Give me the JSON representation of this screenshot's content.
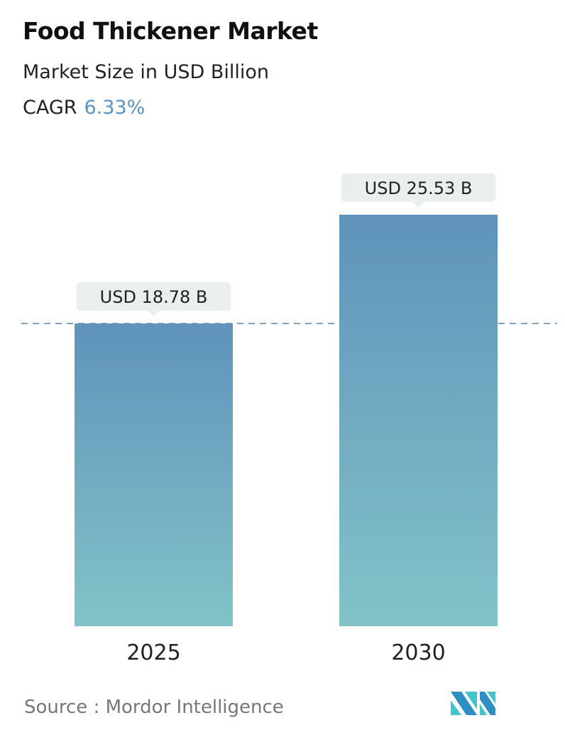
{
  "header": {
    "title": "Food Thickener Market",
    "subtitle": "Market Size in USD Billion",
    "cagr_label": "CAGR",
    "cagr_value": "6.33%"
  },
  "source": "Source :  Mordor Intelligence",
  "logo": {
    "text": "Mordor Intelligence",
    "colors": [
      "#2f8fc4",
      "#42c4cf"
    ]
  },
  "chart_data": {
    "type": "bar",
    "categories": [
      "2025",
      "2030"
    ],
    "values": [
      18.78,
      25.53
    ],
    "data_labels": [
      "USD 18.78 B",
      "USD 25.53 B"
    ],
    "unit": "USD Billion",
    "ylim": [
      0,
      25.53
    ],
    "grid": false,
    "reference_line": {
      "value": 18.78,
      "style": "dashed",
      "color": "#5a7fa0"
    },
    "colors": {
      "bar_top": "#5f93bb",
      "bar_bottom": "#82c3c8",
      "label_bg": "#e8efee"
    }
  }
}
